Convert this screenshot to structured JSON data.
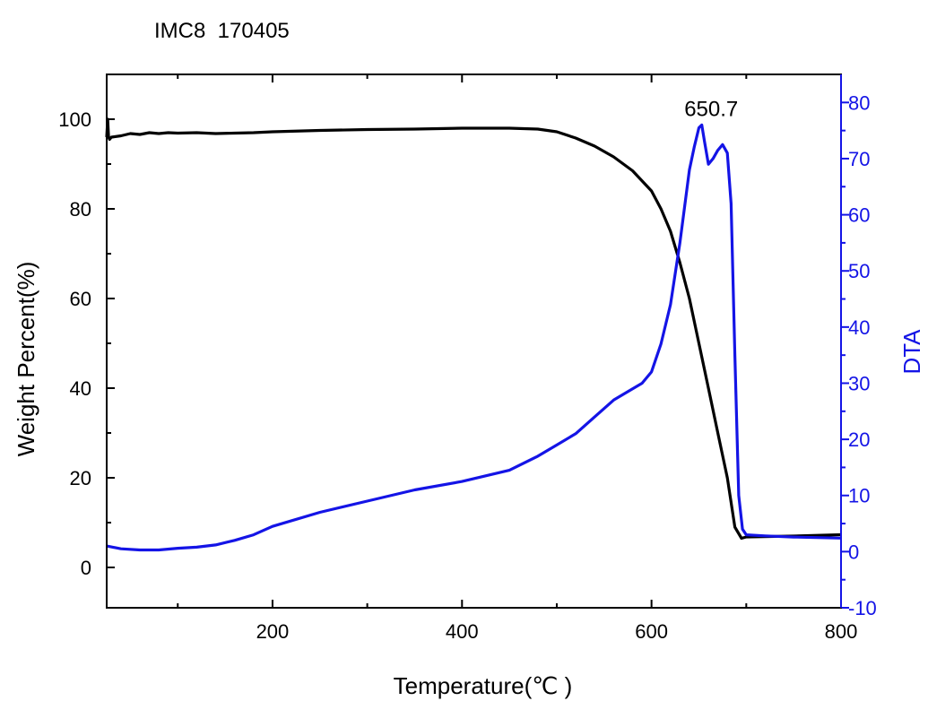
{
  "chart_data": {
    "type": "line",
    "title": "IMC8  170405",
    "xlabel": "Temperature(℃ )",
    "ylabel": "Weight Percent(%)",
    "ylabel_right": "DTA",
    "annotation": "650.7",
    "xlim": [
      25,
      800
    ],
    "ylim": [
      -9,
      110
    ],
    "ylim_right": [
      -10,
      85
    ],
    "x_ticks": [
      200,
      400,
      600,
      800
    ],
    "y_ticks": [
      0,
      20,
      40,
      60,
      80,
      100
    ],
    "y_ticks_right": [
      -10,
      0,
      10,
      20,
      30,
      40,
      50,
      60,
      70,
      80
    ],
    "colors": {
      "weight": "#000000",
      "dta": "#1414e6",
      "axis": "#000000",
      "right_axis": "#1414e6"
    },
    "series": [
      {
        "axis": "left",
        "x": [
          25,
          26,
          27,
          28,
          30,
          40,
          50,
          60,
          70,
          80,
          90,
          100,
          120,
          140,
          160,
          180,
          200,
          250,
          300,
          350,
          400,
          450,
          480,
          500,
          520,
          540,
          560,
          580,
          600,
          610,
          620,
          630,
          640,
          650,
          660,
          670,
          680,
          688,
          695,
          700,
          750,
          800
        ],
        "values": [
          96,
          100,
          96,
          95.5,
          96,
          96.3,
          96.8,
          96.6,
          97,
          96.8,
          97,
          96.9,
          97,
          96.8,
          96.9,
          97,
          97.2,
          97.5,
          97.7,
          97.8,
          98,
          98,
          97.8,
          97.2,
          95.8,
          94,
          91.6,
          88.5,
          84,
          80,
          75,
          68,
          60,
          50,
          40,
          30,
          20,
          9,
          6.5,
          6.8,
          7,
          7.3
        ]
      },
      {
        "axis": "right",
        "x": [
          25,
          40,
          60,
          80,
          100,
          120,
          140,
          160,
          180,
          200,
          250,
          300,
          350,
          400,
          450,
          480,
          500,
          520,
          540,
          560,
          575,
          590,
          600,
          610,
          620,
          630,
          640,
          645,
          650,
          653,
          656,
          660,
          665,
          670,
          675,
          680,
          684,
          688,
          692,
          696,
          700,
          720,
          750,
          800
        ],
        "values": [
          1,
          0.5,
          0.3,
          0.3,
          0.6,
          0.8,
          1.2,
          2,
          3,
          4.5,
          7,
          9,
          11,
          12.5,
          14.5,
          17,
          19,
          21,
          24,
          27,
          28.5,
          30,
          32,
          37,
          44,
          55,
          68,
          72,
          75.5,
          76,
          73,
          69,
          70,
          71.5,
          72.5,
          71,
          62,
          35,
          10,
          4,
          3,
          2.8,
          2.6,
          2.4
        ]
      }
    ]
  }
}
